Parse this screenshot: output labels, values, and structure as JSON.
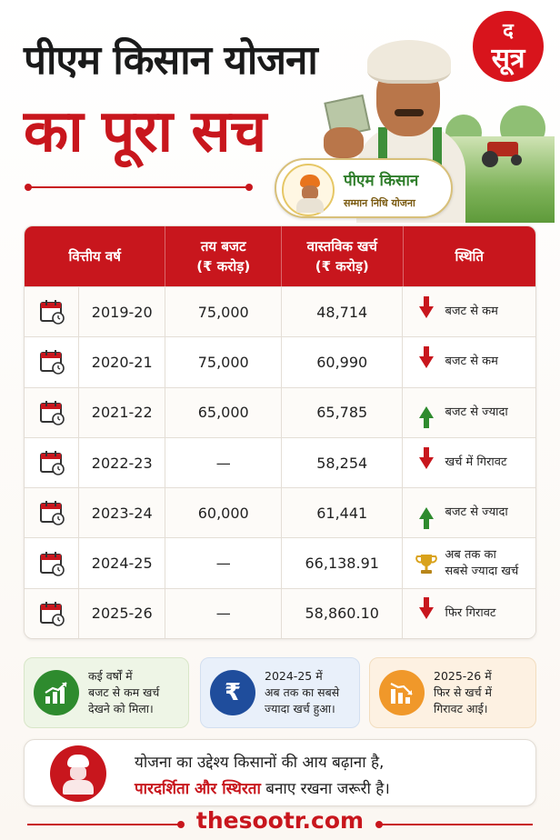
{
  "header": {
    "title_line1": "पीएम किसान योजना",
    "title_line2": "का पूरा सच",
    "logo_line1": "द",
    "logo_line2": "सूत्र"
  },
  "badge": {
    "title": "पीएम किसान",
    "subtitle": "सम्मान निधि योजना"
  },
  "table": {
    "columns": [
      {
        "label": "वित्तीय वर्ष",
        "sub": ""
      },
      {
        "label": "तय बजट",
        "sub": "(₹ करोड़)"
      },
      {
        "label": "वास्तविक खर्च",
        "sub": "(₹ करोड़)"
      },
      {
        "label": "स्थिति",
        "sub": ""
      }
    ],
    "rows": [
      {
        "year": "2019-20",
        "budget": "75,000",
        "actual": "48,714",
        "status": "बजट से कम",
        "icon": "arrow-down-icon"
      },
      {
        "year": "2020-21",
        "budget": "75,000",
        "actual": "60,990",
        "status": "बजट से कम",
        "icon": "arrow-down-icon"
      },
      {
        "year": "2021-22",
        "budget": "65,000",
        "actual": "65,785",
        "status": "बजट से ज्यादा",
        "icon": "arrow-up-icon"
      },
      {
        "year": "2022-23",
        "budget": "—",
        "actual": "58,254",
        "status": "खर्च में गिरावट",
        "icon": "arrow-down-icon"
      },
      {
        "year": "2023-24",
        "budget": "60,000",
        "actual": "61,441",
        "status": "बजट से ज्यादा",
        "icon": "arrow-up-icon"
      },
      {
        "year": "2024-25",
        "budget": "—",
        "actual": "66,138.91",
        "status_line1": "अब तक का",
        "status_line2": "सबसे ज्यादा खर्च",
        "icon": "trophy-icon"
      },
      {
        "year": "2025-26",
        "budget": "—",
        "actual": "58,860.10",
        "status": "फिर गिरावट",
        "icon": "arrow-down-icon"
      }
    ]
  },
  "cards": [
    {
      "lines": [
        "कई वर्षों में",
        "बजट से कम खर्च",
        "देखने को मिला।"
      ],
      "icon": "growth-chart-icon",
      "color": "#2e8b2e"
    },
    {
      "lines": [
        "2024-25 में",
        "अब तक का सबसे",
        "ज्यादा खर्च हुआ।"
      ],
      "icon": "rupee-icon",
      "color": "#1f4d9c",
      "symbol": "₹"
    },
    {
      "lines": [
        "2025-26 में",
        "फिर से खर्च में",
        "गिरावट आई।"
      ],
      "icon": "decline-chart-icon",
      "color": "#f0982a"
    }
  ],
  "message": {
    "line1": "योजना का उद्देश्य किसानों की आय बढ़ाना है,",
    "line2_highlight": "पारदर्शिता और स्थिरता",
    "line2_rest": " बनाए रखना जरूरी है।"
  },
  "footer": {
    "site": "thesootr.com"
  }
}
